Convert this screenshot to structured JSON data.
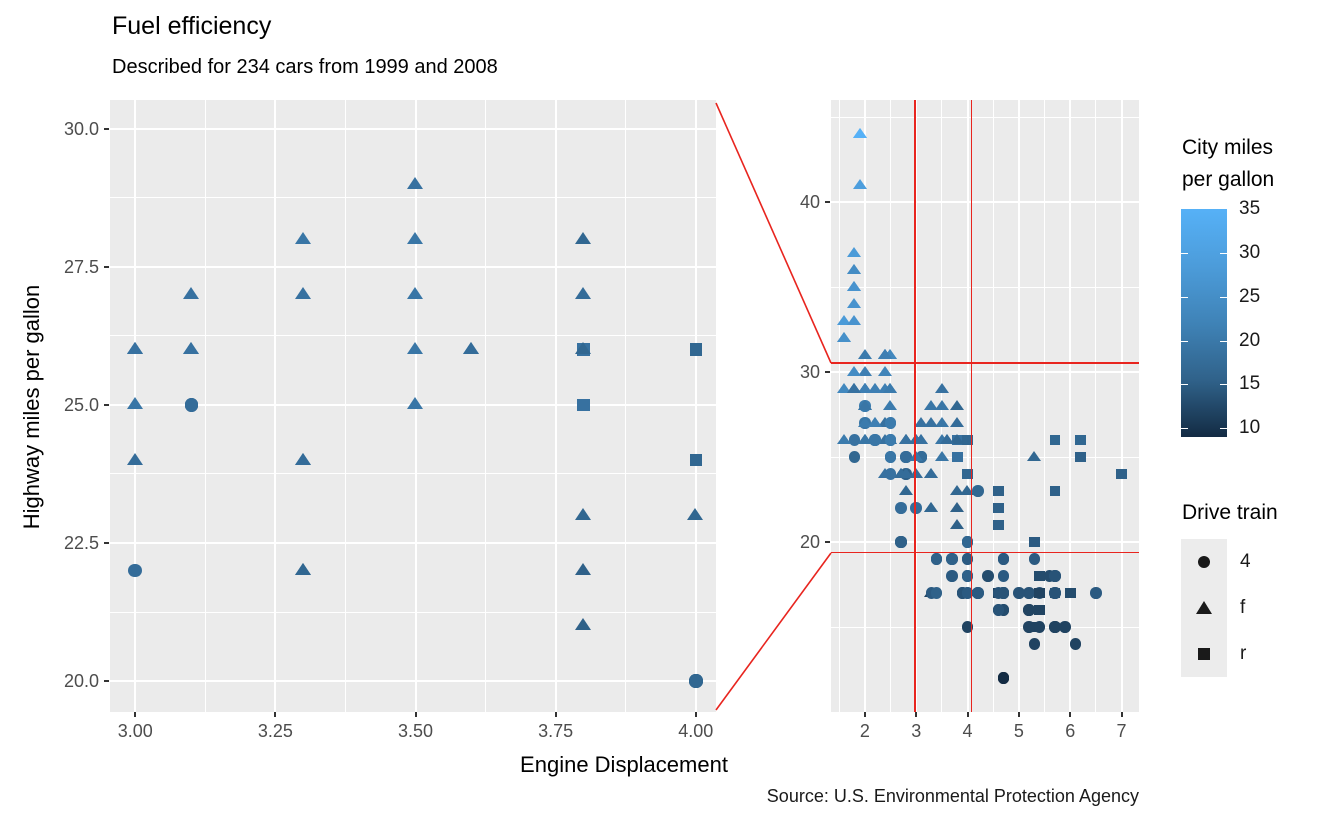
{
  "header": {
    "title": "Fuel efficiency",
    "subtitle": "Described for 234 cars from 1999 and 2008"
  },
  "caption": "Source: U.S. Environmental Protection Agency",
  "colors": {
    "panel_bg": "#EBEBEB",
    "grid": "#FFFFFF",
    "zoom_indicator": "#E8251F",
    "tick_text": "#4D4D4D",
    "gradient_low": "#132B43",
    "gradient_high": "#56B1F7",
    "legend_key_bg": "#ECECEC",
    "legend_shape": "#1A1A1A"
  },
  "legends": {
    "color": {
      "title_line1": "City miles",
      "title_line2": "per gallon",
      "ticks": [
        35,
        30,
        25,
        20,
        15,
        10
      ],
      "domain": [
        9,
        35
      ]
    },
    "shape": {
      "title": "Drive train",
      "items": [
        {
          "shape": "circle",
          "label": "4"
        },
        {
          "shape": "triangle",
          "label": "f"
        },
        {
          "shape": "square",
          "label": "r"
        }
      ]
    }
  },
  "chart_data": {
    "type": "scatter",
    "title": "Fuel efficiency",
    "subtitle": "Described for 234 cars from 1999 and 2008",
    "xlabel": "Engine Displacement",
    "ylabel": "Highway miles per gallon",
    "color_label": "City miles per gallon",
    "shape_label": "Drive train",
    "point_format": [
      "displ",
      "hwy",
      "drv",
      "cty"
    ],
    "zoom_panel": {
      "x_ticks": [
        "3.00",
        "3.25",
        "3.50",
        "3.75",
        "4.00"
      ],
      "x_tick_values": [
        3.0,
        3.25,
        3.5,
        3.75,
        4.0
      ],
      "y_ticks": [
        "30.0",
        "27.5",
        "25.0",
        "22.5",
        "20.0"
      ],
      "y_tick_values": [
        30,
        27.5,
        25,
        22.5,
        20
      ],
      "xlim": [
        2.955,
        4.036
      ],
      "ylim": [
        19.44,
        30.52
      ],
      "grid": true
    },
    "overview_panel": {
      "x_ticks": [
        "2",
        "3",
        "4",
        "5",
        "6",
        "7"
      ],
      "x_tick_values": [
        2,
        3,
        4,
        5,
        6,
        7
      ],
      "y_ticks": [
        "40",
        "30",
        "20"
      ],
      "y_tick_values": [
        40,
        30,
        20
      ],
      "xlim": [
        1.34,
        7.34
      ],
      "ylim": [
        10.0,
        46.0
      ],
      "zoom_window_x": [
        2.975,
        4.08
      ],
      "zoom_window_y": [
        19.38,
        30.53
      ],
      "grid": true
    },
    "points": [
      [
        1.8,
        29,
        "f",
        18
      ],
      [
        1.8,
        29,
        "f",
        21
      ],
      [
        2.0,
        31,
        "f",
        20
      ],
      [
        2.0,
        30,
        "f",
        21
      ],
      [
        2.8,
        26,
        "f",
        16
      ],
      [
        2.8,
        26,
        "f",
        18
      ],
      [
        3.1,
        27,
        "f",
        18
      ],
      [
        1.8,
        26,
        "4",
        18
      ],
      [
        1.8,
        25,
        "4",
        16
      ],
      [
        2.0,
        28,
        "4",
        20
      ],
      [
        2.0,
        27,
        "4",
        19
      ],
      [
        2.8,
        25,
        "4",
        15
      ],
      [
        2.8,
        25,
        "4",
        17
      ],
      [
        3.1,
        25,
        "4",
        17
      ],
      [
        3.1,
        25,
        "4",
        15
      ],
      [
        2.8,
        24,
        "4",
        15
      ],
      [
        3.1,
        25,
        "4",
        17
      ],
      [
        4.2,
        23,
        "4",
        16
      ],
      [
        5.3,
        20,
        "r",
        14
      ],
      [
        5.3,
        15,
        "r",
        11
      ],
      [
        5.3,
        20,
        "r",
        14
      ],
      [
        5.7,
        17,
        "r",
        13
      ],
      [
        6.0,
        17,
        "r",
        12
      ],
      [
        5.7,
        26,
        "r",
        16
      ],
      [
        5.7,
        23,
        "r",
        15
      ],
      [
        6.2,
        26,
        "r",
        16
      ],
      [
        6.2,
        25,
        "r",
        15
      ],
      [
        7.0,
        24,
        "r",
        15
      ],
      [
        5.3,
        14,
        "4",
        11
      ],
      [
        5.3,
        19,
        "4",
        14
      ],
      [
        5.7,
        15,
        "4",
        11
      ],
      [
        6.5,
        17,
        "4",
        14
      ],
      [
        2.4,
        27,
        "f",
        19
      ],
      [
        2.4,
        30,
        "f",
        22
      ],
      [
        3.1,
        26,
        "f",
        18
      ],
      [
        3.5,
        29,
        "f",
        18
      ],
      [
        3.6,
        26,
        "f",
        17
      ],
      [
        2.4,
        24,
        "f",
        18
      ],
      [
        3.0,
        24,
        "f",
        17
      ],
      [
        3.3,
        24,
        "f",
        17
      ],
      [
        3.3,
        24,
        "f",
        17
      ],
      [
        3.3,
        22,
        "f",
        16
      ],
      [
        3.3,
        22,
        "f",
        16
      ],
      [
        3.3,
        17,
        "f",
        11
      ],
      [
        3.8,
        22,
        "f",
        15
      ],
      [
        3.8,
        21,
        "f",
        15
      ],
      [
        3.8,
        23,
        "f",
        16
      ],
      [
        4.0,
        23,
        "f",
        16
      ],
      [
        3.7,
        19,
        "4",
        15
      ],
      [
        3.7,
        18,
        "4",
        14
      ],
      [
        3.9,
        17,
        "4",
        13
      ],
      [
        3.9,
        17,
        "4",
        13
      ],
      [
        4.7,
        19,
        "4",
        14
      ],
      [
        4.7,
        19,
        "4",
        14
      ],
      [
        4.7,
        12,
        "4",
        9
      ],
      [
        5.2,
        15,
        "4",
        11
      ],
      [
        5.2,
        16,
        "4",
        11
      ],
      [
        3.9,
        17,
        "4",
        13
      ],
      [
        4.7,
        17,
        "4",
        13
      ],
      [
        4.7,
        12,
        "4",
        9
      ],
      [
        4.7,
        17,
        "4",
        13
      ],
      [
        4.7,
        18,
        "4",
        14
      ],
      [
        5.2,
        16,
        "4",
        11
      ],
      [
        5.9,
        15,
        "4",
        11
      ],
      [
        4.7,
        17,
        "4",
        13
      ],
      [
        4.7,
        17,
        "4",
        13
      ],
      [
        4.7,
        12,
        "4",
        9
      ],
      [
        4.7,
        16,
        "4",
        12
      ],
      [
        4.7,
        16,
        "4",
        12
      ],
      [
        5.2,
        17,
        "4",
        13
      ],
      [
        5.7,
        18,
        "4",
        13
      ],
      [
        4.6,
        17,
        "r",
        11
      ],
      [
        5.4,
        17,
        "r",
        11
      ],
      [
        5.4,
        18,
        "r",
        12
      ],
      [
        4.0,
        20,
        "4",
        15
      ],
      [
        4.0,
        19,
        "4",
        15
      ],
      [
        4.0,
        19,
        "4",
        14
      ],
      [
        4.0,
        18,
        "4",
        15
      ],
      [
        4.2,
        17,
        "4",
        14
      ],
      [
        4.2,
        17,
        "4",
        14
      ],
      [
        4.6,
        16,
        "4",
        13
      ],
      [
        4.6,
        16,
        "4",
        13
      ],
      [
        4.6,
        17,
        "4",
        13
      ],
      [
        5.4,
        17,
        "4",
        13
      ],
      [
        5.4,
        15,
        "4",
        11
      ],
      [
        3.8,
        26,
        "r",
        18
      ],
      [
        3.8,
        25,
        "r",
        18
      ],
      [
        4.0,
        26,
        "r",
        16
      ],
      [
        4.0,
        24,
        "r",
        16
      ],
      [
        4.6,
        23,
        "r",
        15
      ],
      [
        4.6,
        22,
        "r",
        15
      ],
      [
        4.6,
        21,
        "r",
        15
      ],
      [
        1.6,
        33,
        "f",
        28
      ],
      [
        1.6,
        32,
        "f",
        24
      ],
      [
        1.6,
        32,
        "f",
        25
      ],
      [
        1.6,
        29,
        "f",
        23
      ],
      [
        1.6,
        26,
        "f",
        20
      ],
      [
        1.8,
        36,
        "f",
        25
      ],
      [
        1.8,
        36,
        "f",
        24
      ],
      [
        1.8,
        34,
        "f",
        26
      ],
      [
        2.0,
        29,
        "f",
        21
      ],
      [
        2.4,
        26,
        "f",
        18
      ],
      [
        2.4,
        27,
        "f",
        18
      ],
      [
        2.4,
        31,
        "f",
        21
      ],
      [
        2.5,
        26,
        "f",
        18
      ],
      [
        2.5,
        26,
        "f",
        18
      ],
      [
        3.3,
        28,
        "f",
        19
      ],
      [
        2.0,
        26,
        "f",
        19
      ],
      [
        2.0,
        29,
        "f",
        19
      ],
      [
        2.0,
        28,
        "f",
        19
      ],
      [
        2.0,
        27,
        "f",
        20
      ],
      [
        2.7,
        24,
        "f",
        17
      ],
      [
        2.7,
        24,
        "f",
        16
      ],
      [
        2.7,
        24,
        "f",
        17
      ],
      [
        3.0,
        22,
        "4",
        17
      ],
      [
        3.7,
        19,
        "4",
        15
      ],
      [
        4.0,
        20,
        "4",
        15
      ],
      [
        4.7,
        19,
        "4",
        14
      ],
      [
        4.7,
        12,
        "4",
        9
      ],
      [
        4.7,
        17,
        "4",
        14
      ],
      [
        5.7,
        15,
        "4",
        11
      ],
      [
        6.1,
        14,
        "4",
        11
      ],
      [
        4.0,
        15,
        "4",
        11
      ],
      [
        4.4,
        18,
        "4",
        12
      ],
      [
        5.4,
        17,
        "r",
        11
      ],
      [
        5.4,
        16,
        "r",
        11
      ],
      [
        5.4,
        18,
        "r",
        12
      ],
      [
        4.0,
        17,
        "4",
        14
      ],
      [
        5.0,
        17,
        "4",
        13
      ],
      [
        2.4,
        29,
        "f",
        21
      ],
      [
        2.4,
        31,
        "f",
        23
      ],
      [
        2.5,
        31,
        "f",
        23
      ],
      [
        2.5,
        31,
        "f",
        23
      ],
      [
        3.5,
        27,
        "f",
        19
      ],
      [
        3.5,
        26,
        "f",
        19
      ],
      [
        3.0,
        26,
        "f",
        18
      ],
      [
        3.0,
        25,
        "f",
        19
      ],
      [
        3.5,
        25,
        "f",
        19
      ],
      [
        3.3,
        17,
        "4",
        14
      ],
      [
        4.0,
        20,
        "4",
        14
      ],
      [
        5.6,
        18,
        "4",
        12
      ],
      [
        3.1,
        26,
        "f",
        18
      ],
      [
        3.8,
        26,
        "f",
        16
      ],
      [
        3.8,
        27,
        "f",
        17
      ],
      [
        3.8,
        28,
        "f",
        16
      ],
      [
        5.3,
        25,
        "f",
        16
      ],
      [
        2.5,
        25,
        "4",
        18
      ],
      [
        2.5,
        24,
        "4",
        18
      ],
      [
        2.5,
        27,
        "4",
        20
      ],
      [
        2.5,
        26,
        "4",
        19
      ],
      [
        2.5,
        26,
        "4",
        20
      ],
      [
        2.5,
        25,
        "4",
        19
      ],
      [
        2.2,
        26,
        "4",
        21
      ],
      [
        2.2,
        26,
        "4",
        19
      ],
      [
        2.5,
        26,
        "4",
        19
      ],
      [
        2.5,
        25,
        "4",
        19
      ],
      [
        2.5,
        27,
        "4",
        20
      ],
      [
        2.5,
        26,
        "4",
        20
      ],
      [
        2.7,
        20,
        "4",
        15
      ],
      [
        2.7,
        20,
        "4",
        16
      ],
      [
        3.4,
        19,
        "4",
        15
      ],
      [
        3.4,
        19,
        "4",
        15
      ],
      [
        4.0,
        20,
        "4",
        16
      ],
      [
        4.7,
        17,
        "4",
        14
      ],
      [
        2.2,
        29,
        "f",
        21
      ],
      [
        2.2,
        27,
        "f",
        21
      ],
      [
        2.4,
        31,
        "f",
        21
      ],
      [
        2.4,
        31,
        "f",
        21
      ],
      [
        3.0,
        26,
        "f",
        18
      ],
      [
        3.0,
        26,
        "f",
        18
      ],
      [
        3.5,
        28,
        "f",
        19
      ],
      [
        2.2,
        29,
        "f",
        21
      ],
      [
        2.2,
        27,
        "f",
        21
      ],
      [
        2.4,
        31,
        "f",
        21
      ],
      [
        3.0,
        26,
        "f",
        18
      ],
      [
        3.3,
        27,
        "f",
        18
      ],
      [
        1.8,
        30,
        "f",
        24
      ],
      [
        1.8,
        33,
        "f",
        26
      ],
      [
        1.8,
        35,
        "f",
        26
      ],
      [
        1.8,
        37,
        "f",
        28
      ],
      [
        1.8,
        35,
        "f",
        26
      ],
      [
        4.7,
        17,
        "4",
        13
      ],
      [
        5.7,
        18,
        "4",
        13
      ],
      [
        4.0,
        18,
        "4",
        14
      ],
      [
        4.0,
        17,
        "4",
        14
      ],
      [
        4.7,
        17,
        "4",
        13
      ],
      [
        5.7,
        17,
        "4",
        13
      ],
      [
        5.7,
        17,
        "4",
        13
      ],
      [
        2.7,
        22,
        "4",
        17
      ],
      [
        2.7,
        20,
        "4",
        16
      ],
      [
        2.7,
        20,
        "4",
        15
      ],
      [
        3.4,
        17,
        "4",
        15
      ],
      [
        3.4,
        19,
        "4",
        15
      ],
      [
        4.0,
        18,
        "4",
        15
      ],
      [
        4.0,
        20,
        "4",
        16
      ],
      [
        2.0,
        29,
        "f",
        21
      ],
      [
        2.0,
        26,
        "f",
        19
      ],
      [
        2.0,
        29,
        "f",
        21
      ],
      [
        2.0,
        29,
        "f",
        22
      ],
      [
        2.8,
        24,
        "f",
        17
      ],
      [
        1.9,
        44,
        "f",
        33
      ],
      [
        2.0,
        29,
        "f",
        21
      ],
      [
        2.0,
        26,
        "f",
        19
      ],
      [
        2.0,
        29,
        "f",
        22
      ],
      [
        2.5,
        29,
        "f",
        21
      ],
      [
        2.5,
        29,
        "f",
        21
      ],
      [
        2.8,
        23,
        "f",
        16
      ],
      [
        2.8,
        24,
        "f",
        17
      ],
      [
        1.9,
        44,
        "f",
        35
      ],
      [
        1.9,
        41,
        "f",
        29
      ],
      [
        2.0,
        26,
        "f",
        19
      ],
      [
        2.0,
        29,
        "f",
        21
      ],
      [
        2.5,
        28,
        "f",
        20
      ],
      [
        2.5,
        29,
        "f",
        20
      ],
      [
        1.8,
        29,
        "f",
        21
      ],
      [
        1.8,
        29,
        "f",
        18
      ],
      [
        2.0,
        28,
        "f",
        20
      ],
      [
        2.0,
        28,
        "f",
        19
      ],
      [
        2.8,
        26,
        "f",
        16
      ],
      [
        2.8,
        26,
        "f",
        18
      ],
      [
        3.6,
        26,
        "f",
        17
      ]
    ]
  }
}
